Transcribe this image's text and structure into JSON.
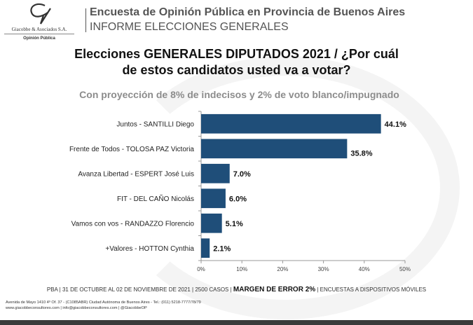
{
  "header": {
    "brand": "Giacobbe & Asociados S.A.",
    "brand_sub": "Opinión Pública",
    "line1": "Encuesta de Opinión Pública en Provincia de Buenos Aires",
    "line2": "INFORME ELECCIONES GENERALES"
  },
  "chart_data": {
    "type": "bar",
    "orientation": "horizontal",
    "title": "Elecciones GENERALES DIPUTADOS 2021 / ¿Por cuál de estos candidatos usted va a votar?",
    "title_line1": "Elecciones GENERALES DIPUTADOS 2021 / ¿Por cuál",
    "title_line2": "de estos candidatos usted va a votar?",
    "subtitle": "Con proyección de 8% de indecisos y 2% de voto blanco/impugnado",
    "categories": [
      "Juntos - SANTILLI Diego",
      "Frente de Todos - TOLOSA PAZ Victoria",
      "Avanza Libertad - ESPERT José Luis",
      "FIT - DEL CAÑO Nicolás",
      "Vamos con vos - RANDAZZO Florencio",
      "+Valores - HOTTON Cynthia"
    ],
    "values": [
      44.1,
      35.8,
      7.0,
      6.0,
      5.1,
      2.1
    ],
    "data_labels": [
      "44.1%",
      "35.8%",
      "7.0%",
      "6.0%",
      "5.1%",
      "2.1%"
    ],
    "xlim": [
      0,
      50
    ],
    "x_ticks": [
      "0%",
      "10%",
      "20%",
      "30%",
      "40%",
      "50%"
    ],
    "grid": false,
    "bar_color": "#1f4e79"
  },
  "footer": {
    "pre": "PBA | 31 DE OCTUBRE AL 02 DE NOVIEMBRE DE 2021 | 2500 CASOS | ",
    "margin": "MARGEN DE ERROR 2%",
    "post": " | ENCUESTAS A DISPOSITIVOS MÓVILES",
    "address": "Avenida de Mayo 1410 4º Of. 37 - (C1085ABR) Ciudad Autónoma de Buenos Aires - Tel.: (011) 5218-7777/78/79",
    "web": "www.giacobbeconsultores.com | info@giacobbeconsultores.com | @GiacobbeOP"
  }
}
